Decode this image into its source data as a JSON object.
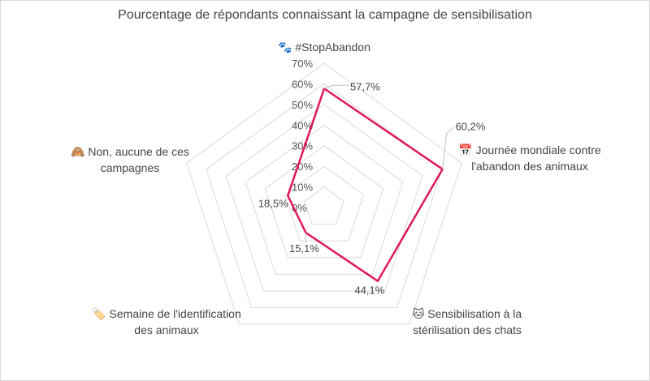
{
  "chart_data": {
    "type": "radar",
    "title": "Pourcentage de répondants connaissant la campagne de sensibilisation",
    "categories": [
      "🐾 #StopAbandon",
      "📅 Journée mondiale contre l'abandon des animaux",
      "🐱 Sensibilisation à la stérilisation des chats",
      "🏷️ Semaine de l'identification des animaux",
      "🙈 Non, aucune de ces campagnes"
    ],
    "series": [
      {
        "values": [
          57.7,
          60.2,
          44.1,
          15.1,
          18.5
        ],
        "labels": [
          "57,7%",
          "60,2%",
          "44,1%",
          "15,1%",
          "18,5%"
        ],
        "color": "#e0185e"
      }
    ],
    "rlim": [
      0,
      70
    ],
    "ticks": [
      "0%",
      "10%",
      "20%",
      "30%",
      "40%",
      "50%",
      "60%",
      "70%"
    ],
    "grid": true,
    "gridColor": "#d9d9d9"
  }
}
